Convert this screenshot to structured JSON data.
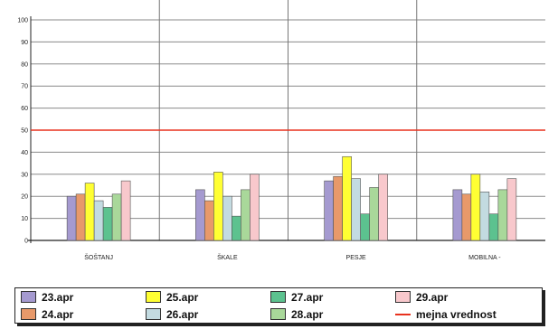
{
  "chart_data": {
    "type": "bar",
    "categories": [
      "ŠOŠTANJ",
      "ŠKALE",
      "PESJE",
      "MOBILNA -"
    ],
    "series": [
      {
        "name": "23.apr",
        "color": "#a59ad0",
        "values": [
          20,
          23,
          27,
          23
        ]
      },
      {
        "name": "24.apr",
        "color": "#e8996a",
        "values": [
          21,
          18,
          29,
          21
        ]
      },
      {
        "name": "25.apr",
        "color": "#ffff33",
        "values": [
          26,
          31,
          38,
          30
        ]
      },
      {
        "name": "26.apr",
        "color": "#c3dbe1",
        "values": [
          18,
          20,
          28,
          22
        ]
      },
      {
        "name": "27.apr",
        "color": "#5cc28f",
        "values": [
          15,
          11,
          12,
          12
        ]
      },
      {
        "name": "28.apr",
        "color": "#a9d89a",
        "values": [
          21,
          23,
          24,
          23
        ]
      },
      {
        "name": "29.apr",
        "color": "#f8c8cc",
        "values": [
          27,
          30,
          30,
          28
        ]
      }
    ],
    "threshold": {
      "name": "mejna vrednost",
      "value": 50,
      "color": "#e8321e"
    },
    "ylim": [
      0,
      100
    ],
    "yticks": [
      0,
      10,
      20,
      30,
      40,
      50,
      60,
      70,
      80,
      90,
      100
    ],
    "grid": true,
    "legend": "bottom",
    "title": "",
    "xlabel": "",
    "ylabel": ""
  }
}
